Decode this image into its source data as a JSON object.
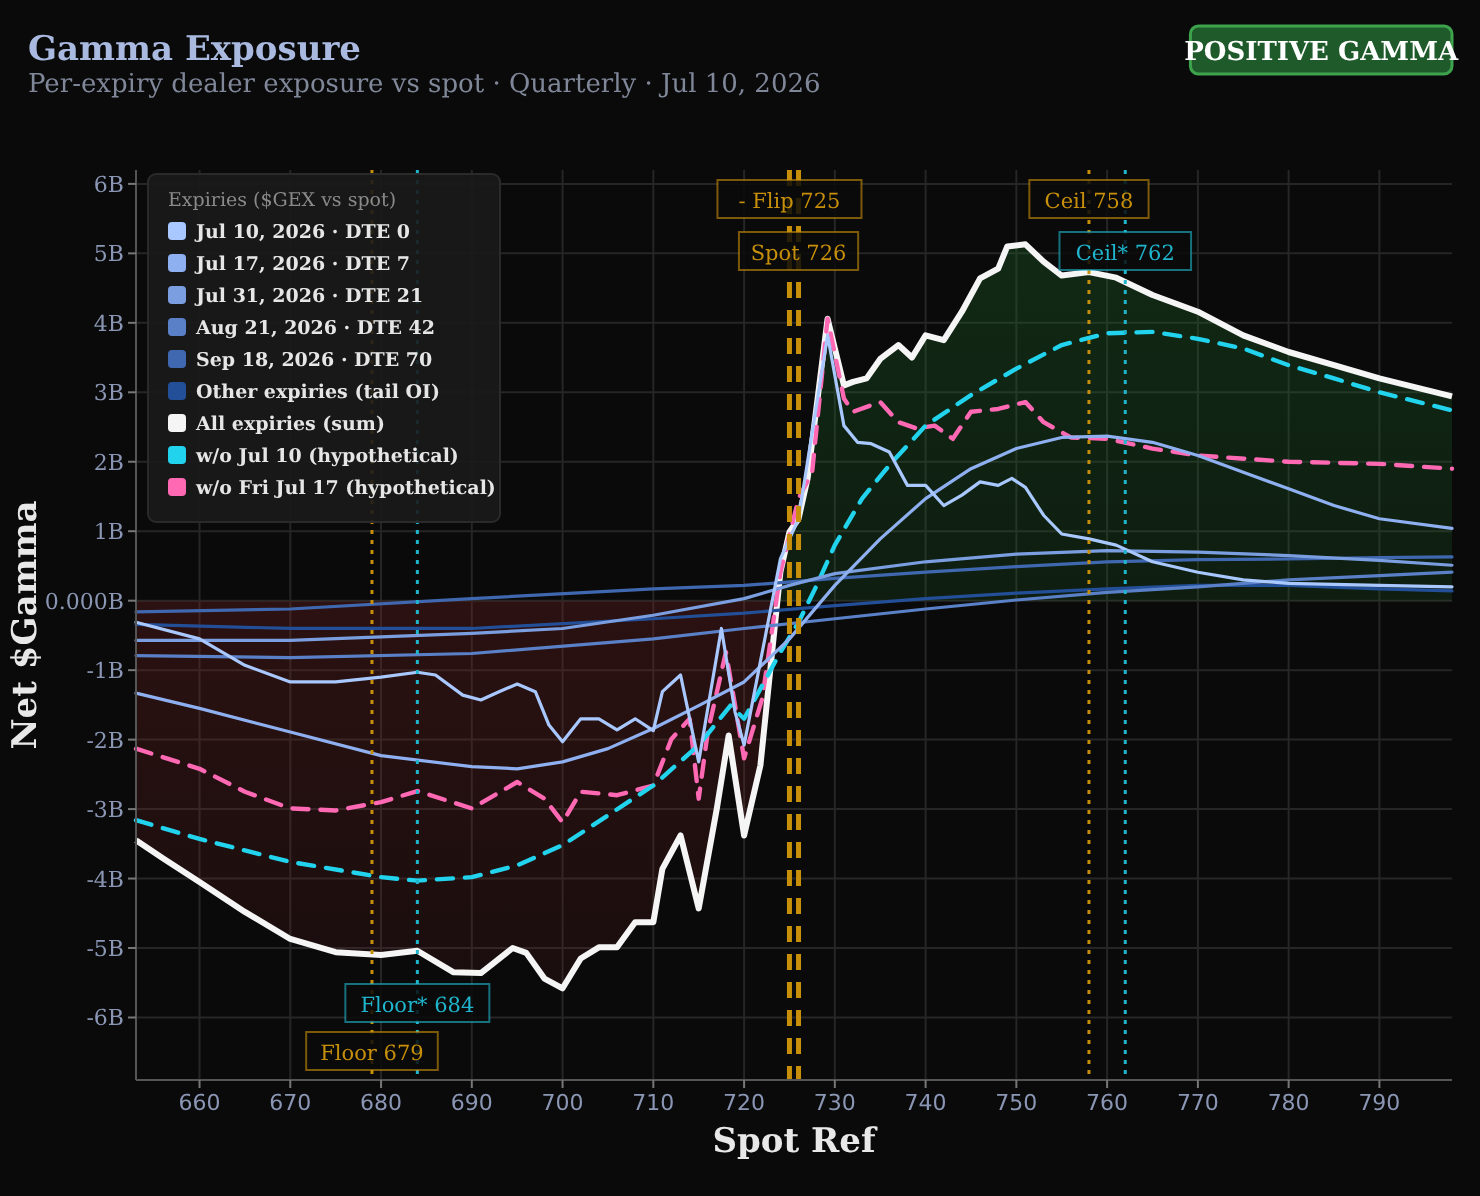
{
  "chart_data": {
    "type": "line",
    "title": "Gamma Exposure",
    "subtitle": "Per-expiry dealer exposure vs spot · Quarterly · Jul 10, 2026",
    "xlabel": "Spot Ref",
    "ylabel": "Net $Gamma",
    "legend_title": "Expiries ($GEX vs spot)",
    "legend": "top left",
    "grid": true,
    "annotations": [
      "POSITIVE GAMMA"
    ],
    "xlim": [
      653,
      798
    ],
    "xticks": [
      660,
      670,
      680,
      690,
      700,
      710,
      720,
      730,
      740,
      750,
      760,
      770,
      780,
      790
    ],
    "ylim": [
      -6.9,
      6.2
    ],
    "yticks": [
      {
        "value": -6,
        "label": "-6B"
      },
      {
        "value": -5,
        "label": "-5B"
      },
      {
        "value": -4,
        "label": "-4B"
      },
      {
        "value": -3,
        "label": "-3B"
      },
      {
        "value": -2,
        "label": "-2B"
      },
      {
        "value": -1,
        "label": "-1B"
      },
      {
        "value": 0,
        "label": "0.000B"
      },
      {
        "value": 1,
        "label": "1B"
      },
      {
        "value": 2,
        "label": "2B"
      },
      {
        "value": 3,
        "label": "3B"
      },
      {
        "value": 4,
        "label": "4B"
      },
      {
        "value": 5,
        "label": "5B"
      },
      {
        "value": 6,
        "label": "6B"
      }
    ],
    "ref_lines": [
      {
        "axis": "x",
        "value": 679,
        "label": "Floor 679",
        "color": "#c8900a",
        "line_style": "dotted"
      },
      {
        "axis": "x",
        "value": 684,
        "label": "Floor* 684",
        "color": "#1fb5cc",
        "line_style": "dotted"
      },
      {
        "axis": "x",
        "value": 725,
        "label": "- Flip 725",
        "color": "#c8900a",
        "line_style": "dashed"
      },
      {
        "axis": "x",
        "value": 726,
        "label": "Spot 726",
        "color": "#c8900a",
        "line_style": "dashed"
      },
      {
        "axis": "x",
        "value": 758,
        "label": "Ceil 758",
        "color": "#c8900a",
        "line_style": "dotted"
      },
      {
        "axis": "x",
        "value": 762,
        "label": "Ceil* 762",
        "color": "#1fb5cc",
        "line_style": "dotted"
      }
    ],
    "series": [
      {
        "name": "Jul 10, 2026 · DTE 0",
        "color": "#a8c8ff",
        "x": [
          653,
          660,
          665,
          670,
          675,
          680,
          684,
          686,
          689,
          691,
          693,
          695,
          697,
          698.5,
          700,
          702,
          704,
          706,
          708,
          710,
          711,
          713,
          715,
          717.5,
          719,
          720,
          724,
          726,
          729.2,
          731,
          732.5,
          734,
          736,
          738,
          740,
          742,
          744,
          746,
          748,
          749.5,
          751,
          753,
          755,
          758,
          761,
          765,
          770,
          775,
          780,
          790,
          798
        ],
        "values": [
          -0.31,
          -0.55,
          -0.93,
          -1.17,
          -1.17,
          -1.1,
          -1.03,
          -1.07,
          -1.36,
          -1.43,
          -1.31,
          -1.2,
          -1.31,
          -1.79,
          -2.03,
          -1.7,
          -1.7,
          -1.86,
          -1.7,
          -1.87,
          -1.31,
          -1.07,
          -2.32,
          -0.4,
          -1.6,
          -2.08,
          0.6,
          1.18,
          3.82,
          2.52,
          2.28,
          2.26,
          2.14,
          1.66,
          1.66,
          1.37,
          1.52,
          1.71,
          1.66,
          1.76,
          1.63,
          1.23,
          0.96,
          0.89,
          0.8,
          0.56,
          0.41,
          0.3,
          0.25,
          0.22,
          0.2
        ]
      },
      {
        "name": "Jul 17, 2026 · DTE 7",
        "color": "#8fb0f0",
        "x": [
          653,
          660,
          670,
          680,
          690,
          695,
          700,
          705,
          710,
          715,
          720,
          725,
          730,
          735,
          740,
          745,
          750,
          755,
          760,
          765,
          770,
          775,
          780,
          785,
          790,
          798
        ],
        "values": [
          -1.33,
          -1.55,
          -1.89,
          -2.23,
          -2.39,
          -2.42,
          -2.32,
          -2.13,
          -1.84,
          -1.51,
          -1.17,
          -0.55,
          0.22,
          0.89,
          1.47,
          1.9,
          2.19,
          2.35,
          2.37,
          2.28,
          2.09,
          1.85,
          1.61,
          1.37,
          1.18,
          1.04
        ]
      },
      {
        "name": "Jul 31, 2026 · DTE 21",
        "color": "#7a9ee0",
        "x": [
          653,
          670,
          690,
          700,
          710,
          720,
          725,
          730,
          740,
          750,
          760,
          770,
          780,
          790,
          798
        ],
        "values": [
          -0.57,
          -0.57,
          -0.47,
          -0.4,
          -0.21,
          0.03,
          0.22,
          0.39,
          0.56,
          0.67,
          0.72,
          0.7,
          0.65,
          0.58,
          0.51
        ]
      },
      {
        "name": "Aug 21, 2026 · DTE 42",
        "color": "#5a80c8",
        "x": [
          653,
          670,
          690,
          710,
          720,
          730,
          740,
          750,
          760,
          770,
          780,
          790,
          798
        ],
        "values": [
          -0.79,
          -0.82,
          -0.76,
          -0.55,
          -0.4,
          -0.26,
          -0.12,
          0.01,
          0.12,
          0.2,
          0.3,
          0.36,
          0.41
        ]
      },
      {
        "name": "Sep 18, 2026 · DTE 70",
        "color": "#4068b0",
        "x": [
          653,
          670,
          690,
          710,
          720,
          730,
          740,
          750,
          760,
          770,
          780,
          790,
          798
        ],
        "values": [
          -0.16,
          -0.12,
          0.03,
          0.17,
          0.22,
          0.32,
          0.41,
          0.49,
          0.56,
          0.59,
          0.6,
          0.62,
          0.63
        ]
      },
      {
        "name": "Other expiries (tail OI)",
        "color": "#234f98",
        "x": [
          653,
          670,
          690,
          710,
          720,
          730,
          740,
          750,
          760,
          770,
          780,
          790,
          798
        ],
        "values": [
          -0.34,
          -0.4,
          -0.4,
          -0.26,
          -0.18,
          -0.07,
          0.03,
          0.11,
          0.17,
          0.22,
          0.22,
          0.17,
          0.14
        ]
      },
      {
        "name": "All expiries (sum)",
        "type": "area",
        "color": "#f5f5f5",
        "x": [
          653,
          656,
          660,
          665,
          670,
          675,
          680,
          684,
          688,
          691,
          694.5,
          696,
          698,
          700,
          702,
          704,
          706,
          708,
          710,
          711,
          713,
          715,
          717,
          718.3,
          720,
          721.8,
          724,
          725,
          726,
          727,
          729.2,
          731,
          732,
          733.5,
          735,
          737,
          738.5,
          740,
          742,
          744,
          746,
          748,
          749,
          751,
          753,
          755,
          758,
          761,
          765,
          770,
          775,
          780,
          785,
          790,
          798
        ],
        "values": [
          -3.45,
          -3.71,
          -4.05,
          -4.48,
          -4.87,
          -5.06,
          -5.1,
          -5.04,
          -5.35,
          -5.36,
          -5.0,
          -5.07,
          -5.44,
          -5.58,
          -5.15,
          -4.99,
          -4.99,
          -4.63,
          -4.63,
          -3.86,
          -3.38,
          -4.43,
          -2.99,
          -1.94,
          -3.38,
          -2.37,
          0.41,
          0.99,
          1.18,
          1.76,
          4.06,
          3.1,
          3.15,
          3.2,
          3.48,
          3.68,
          3.5,
          3.82,
          3.75,
          4.16,
          4.64,
          4.78,
          5.1,
          5.13,
          4.88,
          4.68,
          4.73,
          4.65,
          4.4,
          4.16,
          3.82,
          3.58,
          3.39,
          3.2,
          2.94
        ]
      },
      {
        "name": "w/o Jul 10 (hypothetical)",
        "color": "#22d3ee",
        "line_style": "dashed",
        "x": [
          653,
          660,
          670,
          680,
          684,
          690,
          695,
          700,
          705,
          710,
          715,
          718.5,
          720,
          722,
          724,
          726,
          728,
          730,
          733,
          736,
          740,
          745,
          750,
          755,
          760,
          765,
          770,
          775,
          780,
          785,
          790,
          798
        ],
        "values": [
          -3.16,
          -3.43,
          -3.76,
          -3.98,
          -4.03,
          -3.98,
          -3.81,
          -3.52,
          -3.09,
          -2.66,
          -2.08,
          -1.51,
          -1.7,
          -1.22,
          -0.74,
          -0.31,
          0.22,
          0.8,
          1.47,
          1.95,
          2.52,
          2.96,
          3.34,
          3.68,
          3.85,
          3.87,
          3.77,
          3.63,
          3.39,
          3.2,
          3.0,
          2.74
        ]
      },
      {
        "name": "w/o Fri Jul 17 (hypothetical)",
        "color": "#ff69b4",
        "line_style": "dashed",
        "x": [
          653,
          660,
          665,
          670,
          675,
          680,
          684,
          690,
          695,
          698,
          700,
          702,
          706,
          710,
          712,
          714,
          715,
          716,
          718,
          720,
          722,
          724,
          726,
          727.5,
          729.2,
          731,
          732,
          735,
          737,
          739,
          741,
          743,
          745,
          748,
          751,
          753,
          756,
          760,
          765,
          770,
          780,
          790,
          798
        ],
        "values": [
          -2.13,
          -2.42,
          -2.75,
          -2.99,
          -3.02,
          -2.9,
          -2.74,
          -2.99,
          -2.61,
          -2.85,
          -3.19,
          -2.75,
          -2.8,
          -2.66,
          -1.99,
          -1.7,
          -2.85,
          -1.89,
          -0.74,
          -2.27,
          -1.41,
          0.41,
          1.47,
          1.85,
          4.06,
          2.91,
          2.72,
          2.86,
          2.57,
          2.48,
          2.52,
          2.33,
          2.72,
          2.76,
          2.86,
          2.57,
          2.35,
          2.33,
          2.19,
          2.09,
          2.0,
          1.97,
          1.9
        ]
      }
    ]
  }
}
